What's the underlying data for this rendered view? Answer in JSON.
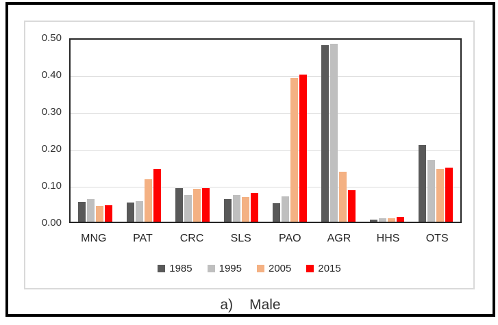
{
  "figure": {
    "caption_prefix": "a)",
    "caption_label": "Male"
  },
  "chart_data": {
    "type": "bar",
    "title": "a) Male",
    "categories": [
      "MNG",
      "PAT",
      "CRC",
      "SLS",
      "PAO",
      "AGR",
      "HHS",
      "OTS"
    ],
    "series": [
      {
        "name": "1985",
        "color": "#595959",
        "values": [
          0.054,
          0.052,
          0.09,
          0.061,
          0.05,
          0.478,
          0.006,
          0.207
        ]
      },
      {
        "name": "1995",
        "color": "#bfbfbf",
        "values": [
          0.062,
          0.055,
          0.073,
          0.073,
          0.068,
          0.481,
          0.01,
          0.166
        ]
      },
      {
        "name": "2005",
        "color": "#f4b183",
        "values": [
          0.042,
          0.114,
          0.088,
          0.067,
          0.388,
          0.135,
          0.01,
          0.143
        ]
      },
      {
        "name": "2015",
        "color": "#ff0000",
        "values": [
          0.045,
          0.143,
          0.09,
          0.077,
          0.398,
          0.085,
          0.013,
          0.146
        ]
      }
    ],
    "xlabel": "",
    "ylabel": "",
    "ylim": [
      0,
      0.5
    ],
    "ytick_step": 0.1,
    "yticks": [
      "0.50",
      "0.40",
      "0.30",
      "0.20",
      "0.10",
      "0.00"
    ],
    "grid": true,
    "legend_position": "bottom",
    "frame_color": "#000000",
    "inner_border_color": "#d9d9d9",
    "gridline_color": "#d9d9d9",
    "axis_box_color": "#262626"
  }
}
